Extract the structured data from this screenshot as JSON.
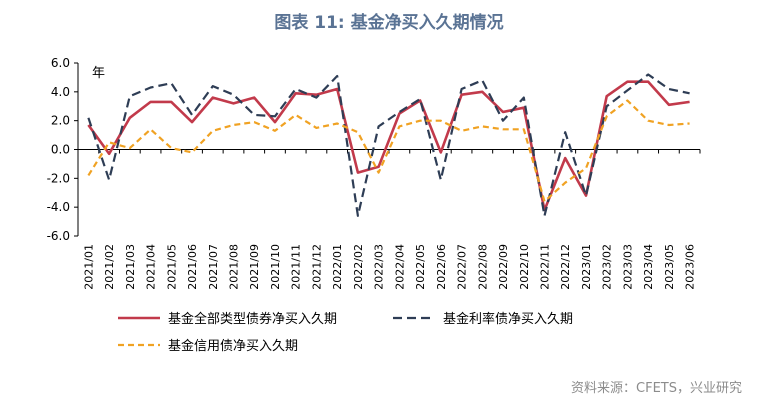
{
  "title": "图表 11: 基金净买入久期情况",
  "source": "资料来源：CFETS，兴业研究",
  "chart_data": {
    "type": "line",
    "unit_label": "年",
    "ylim": [
      -6,
      6
    ],
    "yticks": [
      "-6.0",
      "-4.0",
      "-2.0",
      "0.0",
      "2.0",
      "4.0",
      "6.0"
    ],
    "categories": [
      "2021/01",
      "2021/02",
      "2021/03",
      "2021/04",
      "2021/05",
      "2021/06",
      "2021/07",
      "2021/08",
      "2021/09",
      "2021/10",
      "2021/11",
      "2021/12",
      "2022/01",
      "2022/02",
      "2022/03",
      "2022/04",
      "2022/05",
      "2022/06",
      "2022/07",
      "2022/08",
      "2022/09",
      "2022/10",
      "2022/11",
      "2022/12",
      "2023/01",
      "2023/02",
      "2023/03",
      "2023/04",
      "2023/05",
      "2023/06"
    ],
    "series": [
      {
        "name": "基金全部类型债券净买入久期",
        "color": "#c23a4b",
        "dash": "solid",
        "values": [
          1.7,
          -0.3,
          2.2,
          3.3,
          3.3,
          1.9,
          3.6,
          3.2,
          3.6,
          1.9,
          3.9,
          3.8,
          4.2,
          -1.6,
          -1.2,
          2.5,
          3.4,
          -0.2,
          3.8,
          4.0,
          2.6,
          2.9,
          -4.2,
          -0.6,
          -3.2,
          3.7,
          4.7,
          4.7,
          3.1,
          3.3
        ]
      },
      {
        "name": "基金利率债净买入久期",
        "color": "#2e3d55",
        "dash": "dashed",
        "values": [
          2.2,
          -2.1,
          3.7,
          4.3,
          4.6,
          2.4,
          4.4,
          3.8,
          2.4,
          2.3,
          4.2,
          3.6,
          5.1,
          -4.6,
          1.6,
          2.6,
          3.5,
          -2.1,
          4.2,
          4.8,
          2.0,
          3.6,
          -4.6,
          1.2,
          -3.2,
          3.0,
          4.1,
          5.2,
          4.2,
          3.9
        ]
      },
      {
        "name": "基金信用债净买入久期",
        "color": "#f0a223",
        "dash": "dashed",
        "values": [
          -1.8,
          0.5,
          0.1,
          1.4,
          0.1,
          -0.2,
          1.3,
          1.7,
          1.9,
          1.3,
          2.4,
          1.5,
          1.8,
          1.2,
          -1.6,
          1.6,
          2.0,
          2.0,
          1.3,
          1.6,
          1.4,
          1.4,
          -3.6,
          -2.3,
          -1.3,
          2.3,
          3.4,
          2.0,
          1.7,
          1.8
        ]
      }
    ]
  }
}
